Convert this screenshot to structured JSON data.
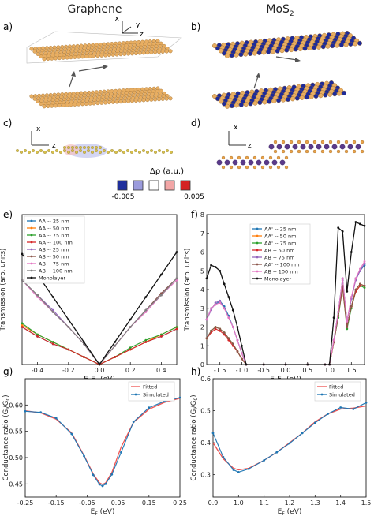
{
  "columns": {
    "left": "Graphene",
    "right": "MoS",
    "right_sub": "2"
  },
  "panel_labels": [
    "a)",
    "b)",
    "c)",
    "d)",
    "e)",
    "f)",
    "g)",
    "h)"
  ],
  "axis_letters": {
    "x": "x",
    "y": "y",
    "z": "z"
  },
  "colorbar": {
    "label": "Δρ (a.u.)",
    "min_label": "-0.005",
    "max_label": "0.005",
    "colors": [
      "#1f2f9c",
      "#9b9bdc",
      "#ffffff",
      "#f2a6a6",
      "#d42222"
    ]
  },
  "colors": {
    "carbon": "#e8ae62",
    "mo": "#1d2a9a",
    "s": "#e8ae62",
    "bond": "#c8881e"
  },
  "chart_data": [
    {
      "id": "e",
      "type": "line",
      "xlabel": "E-E",
      "xlabel_sub": "F",
      "xlabel_unit": " (eV)",
      "ylabel": "Transmission (arb. units)",
      "xlim": [
        -0.5,
        0.5
      ],
      "ylim": [
        0,
        0.8
      ],
      "xticks": [
        -0.4,
        -0.2,
        0.0,
        0.2,
        0.4
      ],
      "xtick_labels": [
        "-0.4",
        "-0.2",
        "0.0",
        "0.2",
        "0.4"
      ],
      "legend": "top-left",
      "x": [
        -0.5,
        -0.4,
        -0.3,
        -0.2,
        -0.1,
        0.0,
        0.1,
        0.2,
        0.3,
        0.4,
        0.5
      ],
      "series": [
        {
          "name": "AA -- 25 nm",
          "color": "#1f77b4",
          "values": [
            0.2,
            0.15,
            0.11,
            0.08,
            0.04,
            0.0,
            0.04,
            0.08,
            0.12,
            0.15,
            0.19
          ]
        },
        {
          "name": "AA -- 50 nm",
          "color": "#ff7f0e",
          "values": [
            0.21,
            0.16,
            0.12,
            0.08,
            0.04,
            0.0,
            0.04,
            0.08,
            0.12,
            0.16,
            0.2
          ]
        },
        {
          "name": "AA -- 75 nm",
          "color": "#2ca02c",
          "values": [
            0.22,
            0.16,
            0.12,
            0.08,
            0.04,
            0.0,
            0.04,
            0.09,
            0.13,
            0.16,
            0.2
          ]
        },
        {
          "name": "AA -- 100 nm",
          "color": "#d62728",
          "values": [
            0.2,
            0.15,
            0.11,
            0.08,
            0.04,
            0.0,
            0.04,
            0.08,
            0.12,
            0.15,
            0.19
          ]
        },
        {
          "name": "AB -- 25 nm",
          "color": "#9467bd",
          "values": [
            0.45,
            0.37,
            0.29,
            0.2,
            0.11,
            0.0,
            0.1,
            0.2,
            0.29,
            0.38,
            0.46
          ]
        },
        {
          "name": "AB -- 50 nm",
          "color": "#8c564b",
          "values": [
            0.45,
            0.37,
            0.28,
            0.2,
            0.11,
            0.0,
            0.1,
            0.2,
            0.29,
            0.38,
            0.46
          ]
        },
        {
          "name": "AB -- 75 nm",
          "color": "#e377c2",
          "values": [
            0.45,
            0.36,
            0.28,
            0.2,
            0.11,
            0.0,
            0.1,
            0.2,
            0.28,
            0.37,
            0.45
          ]
        },
        {
          "name": "AB -- 100 nm",
          "color": "#7f7f7f",
          "values": [
            0.45,
            0.37,
            0.28,
            0.2,
            0.11,
            0.0,
            0.1,
            0.2,
            0.29,
            0.37,
            0.46
          ]
        },
        {
          "name": "Monolayer",
          "color": "#111111",
          "values": [
            0.59,
            0.48,
            0.36,
            0.24,
            0.12,
            0.0,
            0.12,
            0.24,
            0.36,
            0.48,
            0.6
          ]
        }
      ]
    },
    {
      "id": "f",
      "type": "line",
      "xlabel": "E-E",
      "xlabel_sub": "F",
      "xlabel_unit": " (eV)",
      "ylabel": "Transmission (arb. units)",
      "xlim": [
        -1.8,
        1.8
      ],
      "ylim": [
        0,
        8
      ],
      "xticks": [
        -1.5,
        -1.0,
        -0.5,
        0.0,
        0.5,
        1.0,
        1.5
      ],
      "xtick_labels": [
        "-1.5",
        "-1.0",
        "-0.5",
        "0.0",
        "0.5",
        "1.0",
        "1.5"
      ],
      "yticks": [
        0,
        1,
        2,
        3,
        4,
        5,
        6,
        7,
        8
      ],
      "ytick_labels": [
        "0",
        "1",
        "2",
        "3",
        "4",
        "5",
        "6",
        "7",
        "8"
      ],
      "legend": "center-right",
      "x": [
        -1.8,
        -1.7,
        -1.6,
        -1.5,
        -1.4,
        -1.3,
        -1.2,
        -1.1,
        -1.0,
        -0.9,
        -0.5,
        0.0,
        0.5,
        0.9,
        1.0,
        1.1,
        1.2,
        1.3,
        1.4,
        1.5,
        1.6,
        1.7,
        1.8
      ],
      "series": [
        {
          "name": "AA' -- 25 nm",
          "color": "#1f77b4",
          "values": [
            2.4,
            3.0,
            3.2,
            3.4,
            3.1,
            2.6,
            2.0,
            1.3,
            0.6,
            0.0,
            0.0,
            0.0,
            0.0,
            0.0,
            0.0,
            1.3,
            2.8,
            4.6,
            2.3,
            3.5,
            4.6,
            5.0,
            5.3
          ]
        },
        {
          "name": "AA' -- 50 nm",
          "color": "#ff7f0e",
          "values": [
            1.4,
            1.8,
            2.0,
            1.9,
            1.7,
            1.4,
            1.1,
            0.7,
            0.3,
            0.0,
            0.0,
            0.0,
            0.0,
            0.0,
            0.0,
            1.2,
            2.6,
            4.2,
            2.0,
            3.1,
            4.0,
            4.3,
            4.2
          ]
        },
        {
          "name": "AA' -- 75 nm",
          "color": "#2ca02c",
          "values": [
            1.4,
            1.8,
            2.0,
            1.9,
            1.7,
            1.4,
            1.1,
            0.7,
            0.3,
            0.0,
            0.0,
            0.0,
            0.0,
            0.0,
            0.0,
            1.2,
            2.5,
            4.1,
            1.9,
            3.0,
            3.9,
            4.2,
            4.1
          ]
        },
        {
          "name": "AB -- 50 nm",
          "color": "#d62728",
          "values": [
            1.4,
            1.7,
            1.9,
            1.8,
            1.6,
            1.3,
            1.0,
            0.7,
            0.3,
            0.0,
            0.0,
            0.0,
            0.0,
            0.0,
            0.0,
            1.2,
            2.6,
            4.1,
            2.0,
            3.1,
            3.9,
            4.2,
            4.2
          ]
        },
        {
          "name": "AB -- 75 nm",
          "color": "#9467bd",
          "values": [
            2.4,
            2.9,
            3.3,
            3.4,
            3.0,
            2.5,
            2.0,
            1.3,
            0.6,
            0.0,
            0.0,
            0.0,
            0.0,
            0.0,
            0.0,
            1.3,
            2.8,
            4.5,
            2.3,
            3.5,
            4.5,
            5.0,
            5.4
          ]
        },
        {
          "name": "AA' -- 100 nm",
          "color": "#8c564b",
          "values": [
            1.4,
            1.8,
            2.0,
            1.9,
            1.7,
            1.4,
            1.1,
            0.7,
            0.3,
            0.0,
            0.0,
            0.0,
            0.0,
            0.0,
            0.0,
            1.2,
            2.6,
            4.2,
            2.0,
            3.1,
            4.0,
            4.3,
            4.2
          ]
        },
        {
          "name": "AB -- 100 nm",
          "color": "#e377c2",
          "values": [
            2.4,
            3.0,
            3.2,
            3.3,
            3.0,
            2.5,
            2.0,
            1.3,
            0.6,
            0.0,
            0.0,
            0.0,
            0.0,
            0.0,
            0.0,
            1.3,
            2.8,
            4.6,
            2.3,
            3.6,
            4.6,
            5.1,
            5.5
          ]
        },
        {
          "name": "Monolayer",
          "color": "#111111",
          "values": [
            4.6,
            5.3,
            5.2,
            5.0,
            4.3,
            3.6,
            2.9,
            2.0,
            1.0,
            0.0,
            0.0,
            0.0,
            0.0,
            0.0,
            0.0,
            2.5,
            7.3,
            7.1,
            3.9,
            6.0,
            7.6,
            7.5,
            7.4
          ]
        }
      ]
    },
    {
      "id": "g",
      "type": "line",
      "xlabel": "E",
      "xlabel_sub": "F",
      "xlabel_unit": " (eV)",
      "ylabel": "Conductance ratio (G",
      "ylabel_sub1": "I",
      "ylabel_mid": "/G",
      "ylabel_sub2": "0",
      "ylabel_end": ")",
      "xlim": [
        -0.25,
        0.25
      ],
      "ylim": [
        0.425,
        0.65
      ],
      "xticks": [
        -0.25,
        -0.15,
        -0.05,
        0.05,
        0.15,
        0.25
      ],
      "xtick_labels": [
        "-0.25",
        "-0.15",
        "-0.05",
        "0.05",
        "0.15",
        "0.25"
      ],
      "yticks": [
        0.45,
        0.5,
        0.55,
        0.6
      ],
      "ytick_labels": [
        "0.45",
        "0.50",
        "0.55",
        "0.60"
      ],
      "legend": "top-right",
      "x": [
        -0.25,
        -0.2,
        -0.15,
        -0.1,
        -0.06,
        -0.03,
        -0.01,
        0.0,
        0.01,
        0.03,
        0.06,
        0.1,
        0.15,
        0.2,
        0.25
      ],
      "series": [
        {
          "name": "Fitted",
          "color": "#ef5350",
          "values": [
            0.589,
            0.585,
            0.573,
            0.547,
            0.504,
            0.469,
            0.452,
            0.449,
            0.452,
            0.472,
            0.52,
            0.567,
            0.592,
            0.605,
            0.613
          ]
        },
        {
          "name": "Simulated",
          "color": "#1f77b4",
          "values": [
            0.588,
            0.586,
            0.575,
            0.545,
            0.503,
            0.467,
            0.449,
            0.446,
            0.45,
            0.468,
            0.51,
            0.568,
            0.595,
            0.607,
            0.614
          ]
        }
      ]
    },
    {
      "id": "h",
      "type": "line",
      "xlabel": "E",
      "xlabel_sub": "F",
      "xlabel_unit": " (eV)",
      "ylabel": "Conductance ratio (G",
      "ylabel_sub1": "I",
      "ylabel_mid": "/G",
      "ylabel_sub2": "0",
      "ylabel_end": ")",
      "xlim": [
        0.9,
        1.5
      ],
      "ylim": [
        0.23,
        0.6
      ],
      "xticks": [
        0.9,
        1.0,
        1.1,
        1.2,
        1.3,
        1.4,
        1.5
      ],
      "xtick_labels": [
        "0.9",
        "1.0",
        "1.1",
        "1.2",
        "1.3",
        "1.4",
        "1.5"
      ],
      "yticks": [
        0.3,
        0.4,
        0.5,
        0.6
      ],
      "ytick_labels": [
        "0.3",
        "0.4",
        "0.5",
        "0.6"
      ],
      "legend": "top-right",
      "x": [
        0.9,
        0.94,
        0.98,
        1.0,
        1.04,
        1.1,
        1.15,
        1.2,
        1.25,
        1.3,
        1.35,
        1.4,
        1.45,
        1.5
      ],
      "series": [
        {
          "name": "Fitted",
          "color": "#ef5350",
          "values": [
            0.4,
            0.35,
            0.32,
            0.315,
            0.32,
            0.345,
            0.37,
            0.4,
            0.43,
            0.465,
            0.49,
            0.505,
            0.508,
            0.515
          ]
        },
        {
          "name": "Simulated",
          "color": "#1f77b4",
          "values": [
            0.43,
            0.355,
            0.315,
            0.308,
            0.318,
            0.345,
            0.37,
            0.398,
            0.43,
            0.462,
            0.49,
            0.51,
            0.505,
            0.525
          ]
        }
      ]
    }
  ]
}
